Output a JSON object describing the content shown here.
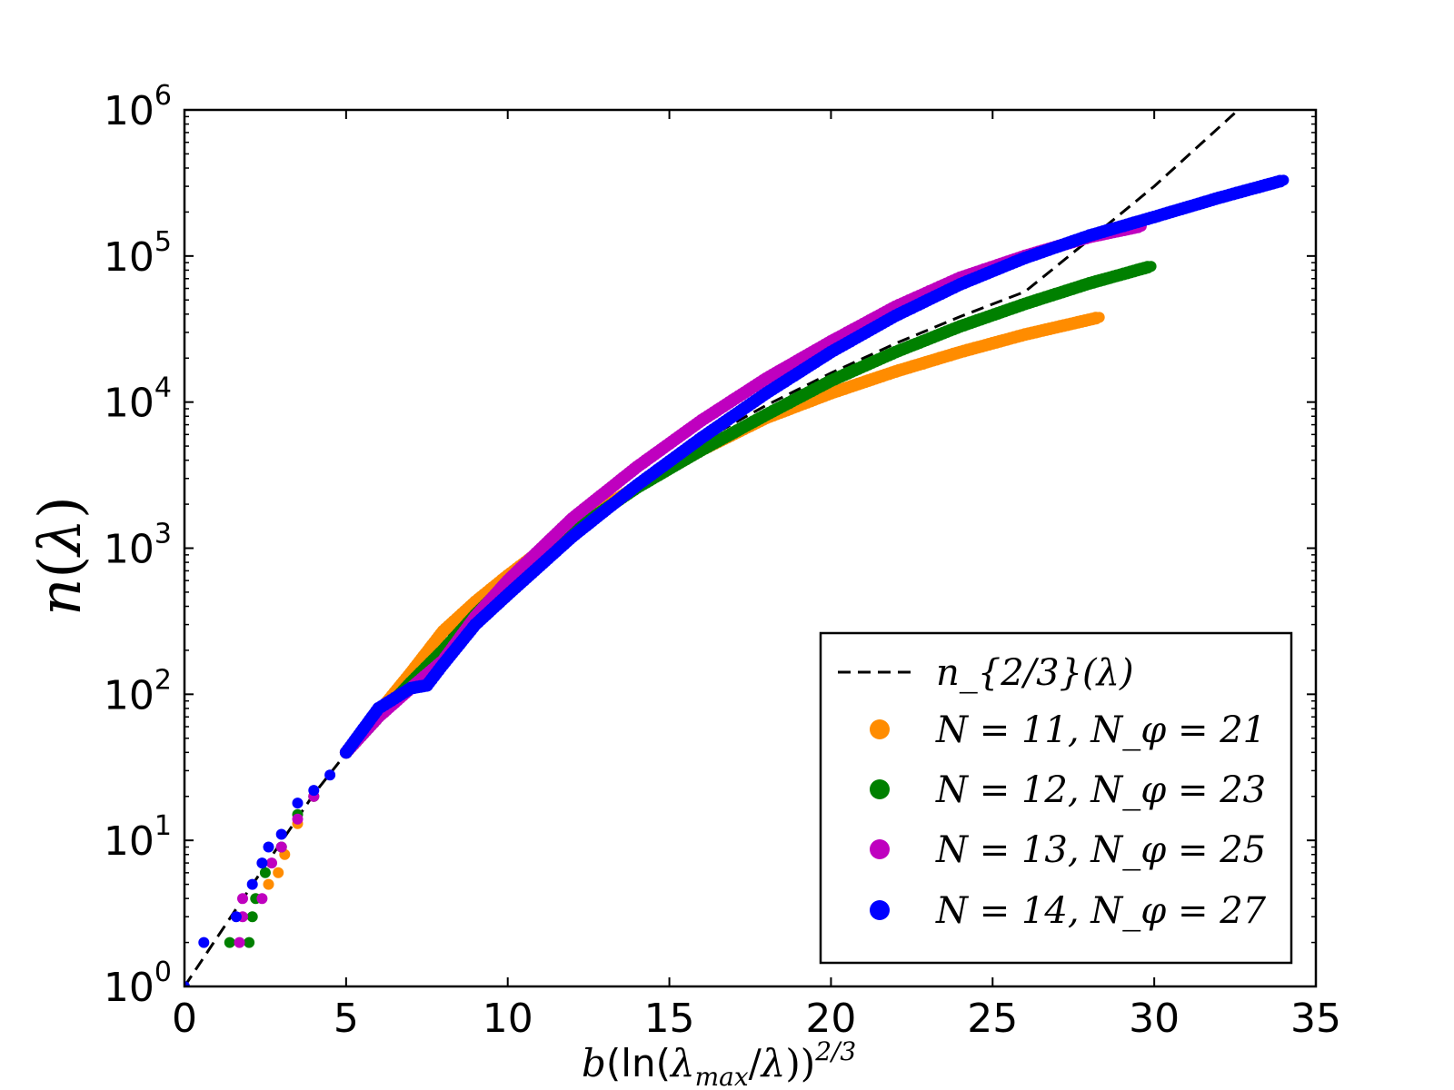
{
  "chart_data": {
    "type": "scatter",
    "title": "",
    "xlabel": "b(ln(λmax/λ))^(2/3)",
    "ylabel": "n(λ)",
    "x_scale": "linear",
    "y_scale": "log",
    "xlim": [
      0,
      35
    ],
    "ylim": [
      1,
      1000000
    ],
    "x_ticks": [
      0,
      5,
      10,
      15,
      20,
      25,
      30,
      35
    ],
    "x_tick_labels": [
      "0",
      "5",
      "10",
      "15",
      "20",
      "25",
      "30",
      "35"
    ],
    "y_ticks": [
      1,
      10,
      100,
      1000,
      10000,
      100000,
      1000000
    ],
    "y_tick_labels": [
      {
        "base": "10",
        "exp": "0"
      },
      {
        "base": "10",
        "exp": "1"
      },
      {
        "base": "10",
        "exp": "2"
      },
      {
        "base": "10",
        "exp": "3"
      },
      {
        "base": "10",
        "exp": "4"
      },
      {
        "base": "10",
        "exp": "5"
      },
      {
        "base": "10",
        "exp": "6"
      }
    ],
    "grid": false,
    "legend_position": "lower-right",
    "series": [
      {
        "name": "n_{2/3}(λ)",
        "style": "dashed-line",
        "color": "#000000",
        "x": [
          0,
          1,
          2,
          3,
          4,
          6,
          8,
          10,
          12,
          14,
          16,
          18,
          20,
          22,
          24,
          26,
          28,
          30,
          32.6
        ],
        "y": [
          1,
          2.15,
          4.6,
          9.8,
          20.7,
          75,
          230,
          600,
          1380,
          2860,
          5400,
          9500,
          15800,
          25200,
          38500,
          57000,
          130000,
          300000,
          1000000
        ]
      },
      {
        "name": "N = 11, N_φ = 21",
        "style": "markers",
        "color": "#ff8c00",
        "x": [
          2.6,
          2.9,
          3.1,
          3.5,
          4,
          5,
          6,
          7,
          8,
          9,
          10,
          12,
          14,
          16,
          18,
          20,
          22,
          24,
          26,
          28.3
        ],
        "y": [
          5,
          6,
          8,
          13,
          20,
          40,
          75,
          140,
          270,
          430,
          650,
          1400,
          2650,
          4700,
          7800,
          11500,
          16200,
          22000,
          29000,
          38000
        ]
      },
      {
        "name": "N = 12, N_φ = 23",
        "style": "markers",
        "color": "#008000",
        "x": [
          1.4,
          2.0,
          2.1,
          2.2,
          2.5,
          3,
          3.5,
          4,
          5,
          6,
          7,
          8,
          9,
          10,
          12,
          14,
          16,
          18,
          20,
          22,
          24,
          26,
          28,
          29.9
        ],
        "y": [
          2,
          2,
          3,
          4,
          6,
          9,
          15,
          20,
          40,
          70,
          120,
          200,
          350,
          580,
          1300,
          2600,
          4700,
          8200,
          14000,
          22000,
          33000,
          47000,
          65000,
          85000
        ]
      },
      {
        "name": "N = 13, N_φ = 25",
        "style": "markers",
        "color": "#bf00bf",
        "x": [
          1.7,
          1.8,
          1.8,
          2.4,
          2.7,
          3,
          3.5,
          4,
          5,
          6,
          7,
          8,
          9,
          10,
          12,
          14,
          16,
          18,
          20,
          22,
          24,
          26,
          28,
          29.6
        ],
        "y": [
          2,
          3,
          4,
          4,
          7,
          9,
          14,
          20,
          40,
          70,
          110,
          170,
          340,
          600,
          1600,
          3600,
          7500,
          14500,
          26000,
          45000,
          71000,
          100000,
          135000,
          160000
        ]
      },
      {
        "name": "N = 14, N_φ = 27",
        "style": "markers",
        "color": "#0000ff",
        "x": [
          0,
          0.6,
          1.6,
          2.1,
          2.4,
          2.6,
          3,
          3.5,
          4,
          4.5,
          5,
          6,
          7,
          7.5,
          8,
          9,
          10,
          12,
          14,
          16,
          18,
          20,
          22,
          24,
          26,
          28,
          30,
          32,
          34
        ],
        "y": [
          1,
          2,
          3,
          5,
          7,
          9,
          11,
          18,
          22,
          28,
          40,
          80,
          110,
          115,
          160,
          300,
          480,
          1200,
          2700,
          5700,
          11500,
          22000,
          39000,
          64000,
          97000,
          138000,
          185000,
          250000,
          330000
        ]
      }
    ]
  }
}
